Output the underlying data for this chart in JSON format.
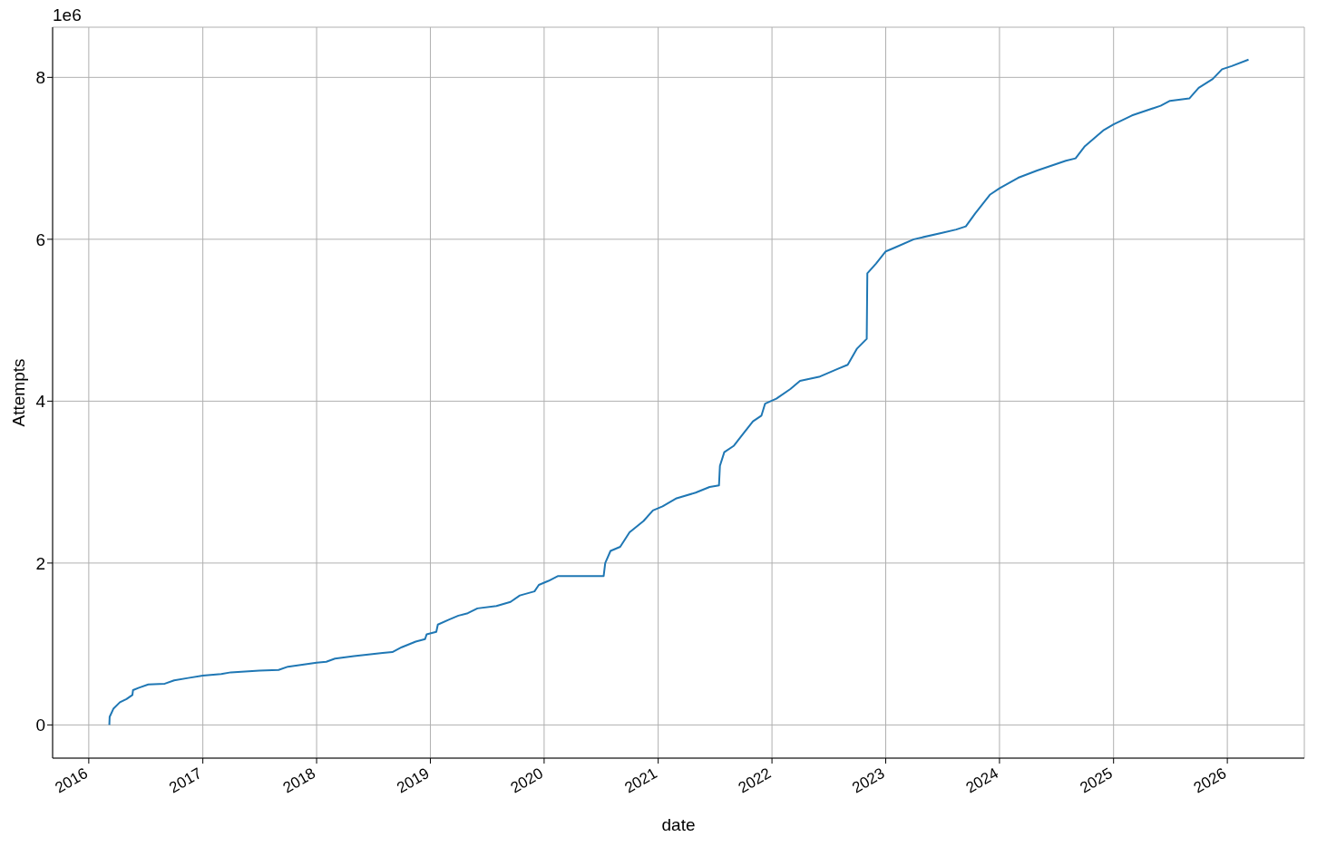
{
  "chart_data": {
    "type": "line",
    "xlabel": "date",
    "ylabel": "Attempts",
    "annotations": [
      "1e6"
    ],
    "grid": true,
    "marker": "none",
    "line_style": "solid",
    "xlim": [
      "2015-09-07",
      "2026-09-05"
    ],
    "ylim": [
      -0.41,
      8.62
    ],
    "xticks": [
      {
        "value": "2016",
        "label": "2016"
      },
      {
        "value": "2017",
        "label": "2017"
      },
      {
        "value": "2018",
        "label": "2018"
      },
      {
        "value": "2019",
        "label": "2019"
      },
      {
        "value": "2020",
        "label": "2020"
      },
      {
        "value": "2021",
        "label": "2021"
      },
      {
        "value": "2022",
        "label": "2022"
      },
      {
        "value": "2023",
        "label": "2023"
      },
      {
        "value": "2024",
        "label": "2024"
      },
      {
        "value": "2025",
        "label": "2025"
      },
      {
        "value": "2026",
        "label": "2026"
      }
    ],
    "yticks": [
      0,
      2,
      4,
      6,
      8
    ],
    "x": [
      "2016-03-07",
      "2016-03-08",
      "2016-03-20",
      "2016-04-10",
      "2016-05-01",
      "2016-05-20",
      "2016-05-22",
      "2016-06-10",
      "2016-07-10",
      "2016-09-01",
      "2016-10-01",
      "2016-11-15",
      "2017-01-01",
      "2017-03-01",
      "2017-04-01",
      "2017-07-01",
      "2017-09-01",
      "2017-10-01",
      "2018-01-01",
      "2018-02-01",
      "2018-03-01",
      "2018-05-01",
      "2018-08-01",
      "2018-09-01",
      "2018-10-01",
      "2018-11-15",
      "2018-12-15",
      "2018-12-20",
      "2019-01-20",
      "2019-01-25",
      "2019-03-01",
      "2019-04-01",
      "2019-05-01",
      "2019-06-01",
      "2019-08-01",
      "2019-09-15",
      "2019-10-15",
      "2019-12-01",
      "2019-12-15",
      "2020-01-15",
      "2020-02-15",
      "2020-07-10",
      "2020-07-15",
      "2020-08-01",
      "2020-09-01",
      "2020-10-01",
      "2020-11-15",
      "2020-12-15",
      "2021-01-15",
      "2021-03-01",
      "2021-05-01",
      "2021-06-15",
      "2021-07-15",
      "2021-07-18",
      "2021-08-01",
      "2021-09-01",
      "2021-10-01",
      "2021-11-01",
      "2021-11-28",
      "2021-12-10",
      "2022-01-15",
      "2022-03-01",
      "2022-04-01",
      "2022-06-01",
      "2022-08-01",
      "2022-09-01",
      "2022-10-01",
      "2022-11-01",
      "2022-11-03",
      "2022-12-01",
      "2023-01-01",
      "2023-02-01",
      "2023-04-01",
      "2023-07-01",
      "2023-08-15",
      "2023-09-15",
      "2023-10-15",
      "2023-12-01",
      "2024-01-01",
      "2024-03-01",
      "2024-05-01",
      "2024-08-01",
      "2024-09-01",
      "2024-10-01",
      "2024-12-01",
      "2025-01-01",
      "2025-03-01",
      "2025-06-01",
      "2025-07-01",
      "2025-09-01",
      "2025-10-01",
      "2025-11-15",
      "2025-12-15",
      "2026-01-15",
      "2026-03-10"
    ],
    "series": [
      {
        "color": "#1f77b4",
        "values": [
          0,
          0.1,
          0.2,
          0.28,
          0.32,
          0.37,
          0.43,
          0.46,
          0.5,
          0.51,
          0.55,
          0.58,
          0.61,
          0.63,
          0.65,
          0.67,
          0.68,
          0.72,
          0.77,
          0.78,
          0.82,
          0.85,
          0.89,
          0.9,
          0.96,
          1.03,
          1.06,
          1.12,
          1.15,
          1.24,
          1.3,
          1.35,
          1.38,
          1.44,
          1.47,
          1.52,
          1.6,
          1.65,
          1.73,
          1.78,
          1.84,
          1.84,
          2.0,
          2.15,
          2.2,
          2.38,
          2.52,
          2.65,
          2.7,
          2.8,
          2.87,
          2.94,
          2.96,
          3.2,
          3.37,
          3.45,
          3.6,
          3.75,
          3.82,
          3.97,
          4.03,
          4.15,
          4.25,
          4.3,
          4.4,
          4.45,
          4.65,
          4.77,
          5.58,
          5.7,
          5.85,
          5.9,
          6.0,
          6.08,
          6.12,
          6.16,
          6.32,
          6.55,
          6.63,
          6.76,
          6.85,
          6.97,
          7.0,
          7.15,
          7.35,
          7.42,
          7.53,
          7.65,
          7.71,
          7.74,
          7.87,
          7.98,
          8.1,
          8.14,
          8.22
        ]
      }
    ]
  }
}
